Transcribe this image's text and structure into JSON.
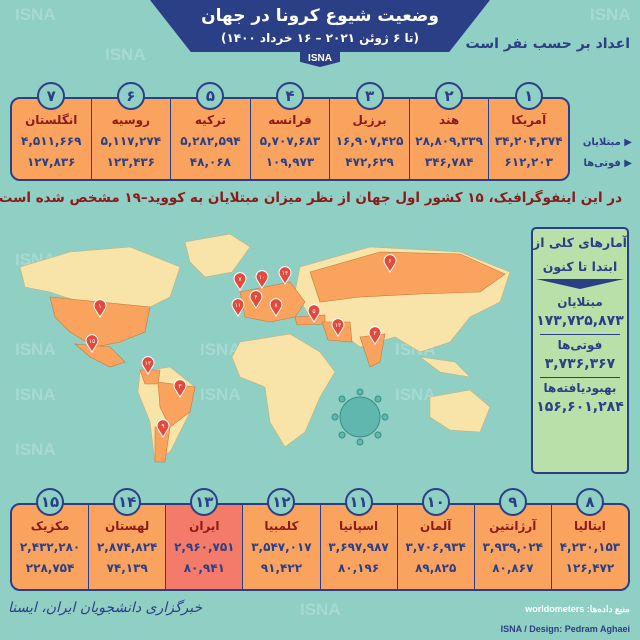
{
  "header": {
    "title": "وضعیت شیوع کرونا در جهان",
    "subtitle": "(تا ۶ ژوئن ۲۰۲۱ – ۱۶ خرداد ۱۴۰۰)",
    "tab": "ISNA",
    "unit_note": "اعداد بر حسب نفر است"
  },
  "watermark": "ISNA",
  "row_labels": {
    "cases": "مبتلایان",
    "deaths": "فوتی‌ها"
  },
  "top_countries": [
    {
      "rank": "۱",
      "name": "آمریکا",
      "cases": "۳۴,۲۰۴,۳۷۴",
      "deaths": "۶۱۲,۲۰۳"
    },
    {
      "rank": "۲",
      "name": "هند",
      "cases": "۲۸,۸۰۹,۳۳۹",
      "deaths": "۳۴۶,۷۸۴"
    },
    {
      "rank": "۳",
      "name": "برزیل",
      "cases": "۱۶,۹۰۷,۴۲۵",
      "deaths": "۴۷۲,۶۲۹"
    },
    {
      "rank": "۴",
      "name": "فرانسه",
      "cases": "۵,۷۰۷,۶۸۳",
      "deaths": "۱۰۹,۹۷۳"
    },
    {
      "rank": "۵",
      "name": "ترکیه",
      "cases": "۵,۲۸۲,۵۹۴",
      "deaths": "۴۸,۰۶۸"
    },
    {
      "rank": "۶",
      "name": "روسیه",
      "cases": "۵,۱۱۷,۲۷۴",
      "deaths": "۱۲۳,۴۳۶"
    },
    {
      "rank": "۷",
      "name": "انگلستان",
      "cases": "۴,۵۱۱,۶۶۹",
      "deaths": "۱۲۷,۸۳۶"
    }
  ],
  "headline": "در این اینفوگرافیک، ۱۵ کشور اول جهان از نظر میزان مبتلایان به کووید–۱۹ مشخص شده است",
  "totals": {
    "heading_1": "آمارهای کلی از",
    "heading_2": "ابتدا تا کنون",
    "cases_label": "مبتلایان",
    "cases": "۱۷۳,۷۲۵,۸۷۳",
    "deaths_label": "فوتی‌ها",
    "deaths": "۳,۷۳۶,۳۶۷",
    "recovered_label": "بهبودیافته‌ها",
    "recovered": "۱۵۶,۶۰۱,۲۸۴"
  },
  "bottom_countries": [
    {
      "rank": "۸",
      "name": "ایتالیا",
      "cases": "۴,۲۳۰,۱۵۳",
      "deaths": "۱۲۶,۴۷۲"
    },
    {
      "rank": "۹",
      "name": "آرژانتین",
      "cases": "۳,۹۳۹,۰۲۴",
      "deaths": "۸۰,۸۶۷"
    },
    {
      "rank": "۱۰",
      "name": "آلمان",
      "cases": "۳,۷۰۶,۹۳۴",
      "deaths": "۸۹,۸۲۵"
    },
    {
      "rank": "۱۱",
      "name": "اسپانیا",
      "cases": "۳,۶۹۷,۹۸۷",
      "deaths": "۸۰,۱۹۶"
    },
    {
      "rank": "۱۲",
      "name": "کلمبیا",
      "cases": "۳,۵۴۷,۰۱۷",
      "deaths": "۹۱,۴۲۲"
    },
    {
      "rank": "۱۳",
      "name": "ایران",
      "cases": "۲,۹۶۰,۷۵۱",
      "deaths": "۸۰,۹۴۱",
      "highlight": true
    },
    {
      "rank": "۱۴",
      "name": "لهستان",
      "cases": "۲,۸۷۴,۸۲۴",
      "deaths": "۷۴,۱۳۹"
    },
    {
      "rank": "۱۵",
      "name": "مکزیک",
      "cases": "۲,۴۳۲,۲۸۰",
      "deaths": "۲۲۸,۷۵۴"
    }
  ],
  "footer": {
    "source": "منبع داده‌ها: worldometers",
    "design": "ISNA / Design: Pedram Aghaei",
    "logo_text": "خبرگزاری دانشجویان ایران، ایسنا"
  },
  "colors": {
    "background": "#8fcfc4",
    "navy": "#2b3f86",
    "orange": "#f9a35f",
    "iran": "#f47a6a",
    "land": "#f8e4a8",
    "headline": "#8b1a1a",
    "panel": "#b8e0a8"
  }
}
